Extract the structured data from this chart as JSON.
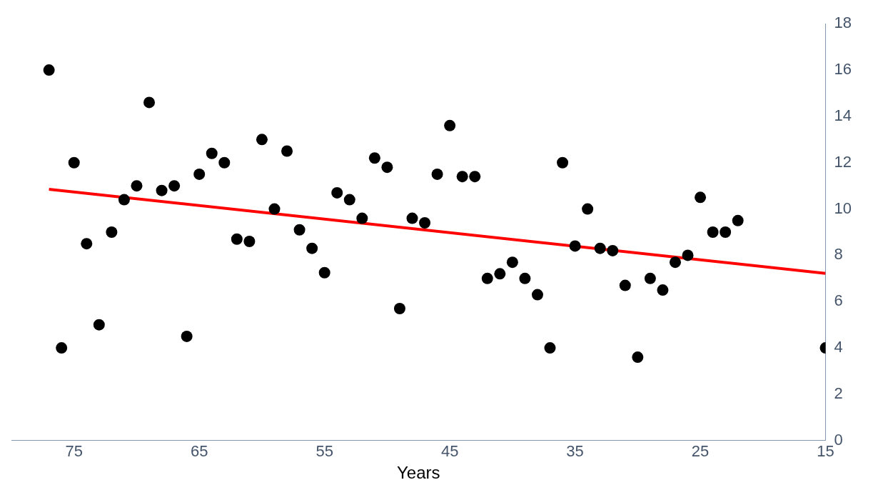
{
  "chart_data": {
    "type": "scatter",
    "xlabel": "Years",
    "x": [
      77,
      76,
      75,
      74,
      73,
      72,
      71,
      70,
      69,
      68,
      67,
      66,
      65,
      64,
      63,
      62,
      61,
      60,
      59,
      58,
      57,
      56,
      55,
      54,
      53,
      52,
      51,
      50,
      49,
      48,
      47,
      46,
      45,
      44,
      43,
      42,
      41,
      40,
      39,
      38,
      37,
      36,
      35,
      34,
      33,
      32,
      31,
      30,
      29,
      28,
      27,
      26,
      25,
      24,
      23,
      22,
      15
    ],
    "series": [
      {
        "color": "#000000",
        "marker": "circle",
        "values": [
          16,
          4,
          12,
          8.5,
          5,
          9,
          10.4,
          11,
          14.6,
          10.8,
          11,
          4.5,
          11.5,
          12.4,
          12,
          8.7,
          8.6,
          13,
          10,
          12.5,
          9.1,
          8.3,
          7.25,
          10.7,
          10.4,
          9.6,
          12.2,
          11.8,
          5.7,
          9.6,
          9.4,
          11.5,
          13.6,
          11.4,
          11.4,
          7,
          7.2,
          7.7,
          7,
          6.3,
          4,
          12,
          8.4,
          10,
          8.3,
          8.2,
          6.7,
          3.6,
          7,
          6.5,
          7.7,
          8,
          10.5,
          9,
          9,
          9.5,
          4
        ]
      },
      {
        "type": "line",
        "color": "#ff0000",
        "marker": "none",
        "x": [
          77,
          15
        ],
        "values": [
          10.85,
          7.22
        ]
      }
    ],
    "xlim": [
      80,
      15
    ],
    "ylim": [
      0,
      18
    ],
    "xticks": [
      75,
      65,
      55,
      45,
      35,
      25,
      15
    ],
    "yticks": [
      0,
      2,
      4,
      6,
      8,
      10,
      12,
      14,
      16,
      18
    ],
    "grid": false,
    "legend": false
  }
}
